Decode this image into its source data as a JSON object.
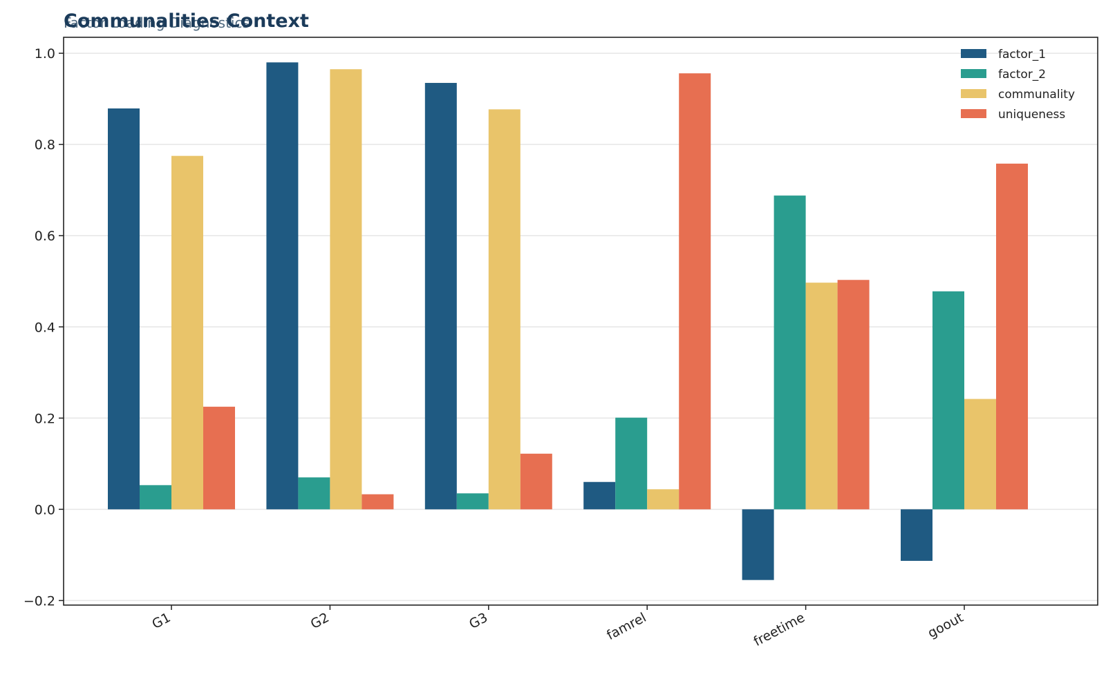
{
  "chart_data": {
    "type": "bar",
    "title": "Communalities Context",
    "subtitle": "Factor Loading Diagnostics",
    "xlabel": "",
    "ylabel": "",
    "categories": [
      "G1",
      "G2",
      "G3",
      "famrel",
      "freetime",
      "goout"
    ],
    "series": [
      {
        "name": "factor_1",
        "color": "#1f5a82",
        "values": [
          0.879,
          0.98,
          0.935,
          0.06,
          -0.155,
          -0.113
        ]
      },
      {
        "name": "factor_2",
        "color": "#2a9d8f",
        "values": [
          0.053,
          0.07,
          0.035,
          0.201,
          0.688,
          0.478
        ]
      },
      {
        "name": "communality",
        "color": "#e9c46a",
        "values": [
          0.775,
          0.965,
          0.877,
          0.044,
          0.497,
          0.242
        ]
      },
      {
        "name": "uniqueness",
        "color": "#e76f51",
        "values": [
          0.225,
          0.033,
          0.122,
          0.956,
          0.503,
          0.758
        ]
      }
    ],
    "ylim": [
      -0.21,
      1.035
    ],
    "yticks": [
      -0.2,
      0.0,
      0.2,
      0.4,
      0.6,
      0.8,
      1.0
    ],
    "ytick_labels": [
      "−0.2",
      "0.0",
      "0.2",
      "0.4",
      "0.6",
      "0.8",
      "1.0"
    ],
    "grid": true,
    "legend_position": "top-right"
  }
}
